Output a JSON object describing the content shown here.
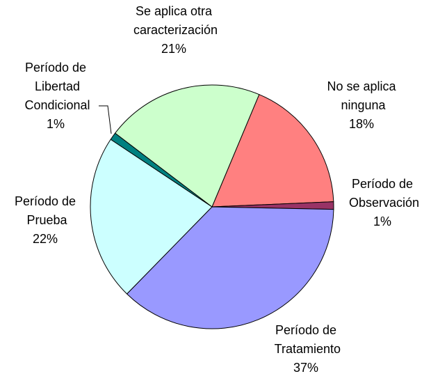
{
  "chart_data": {
    "type": "pie",
    "categories": [
      "No se aplica ninguna",
      "Período de Observación",
      "Período de Tratamiento",
      "Período de Prueba",
      "Período de Libertad Condicional",
      "Se aplica otra caracterización"
    ],
    "values": [
      18,
      1,
      37,
      22,
      1,
      21
    ],
    "value_labels": [
      "18%",
      "1%",
      "37%",
      "22%",
      "1%",
      "21%"
    ],
    "colors": [
      "#ff8080",
      "#993366",
      "#9999ff",
      "#ccffff",
      "#008080",
      "#ccffcc"
    ]
  }
}
